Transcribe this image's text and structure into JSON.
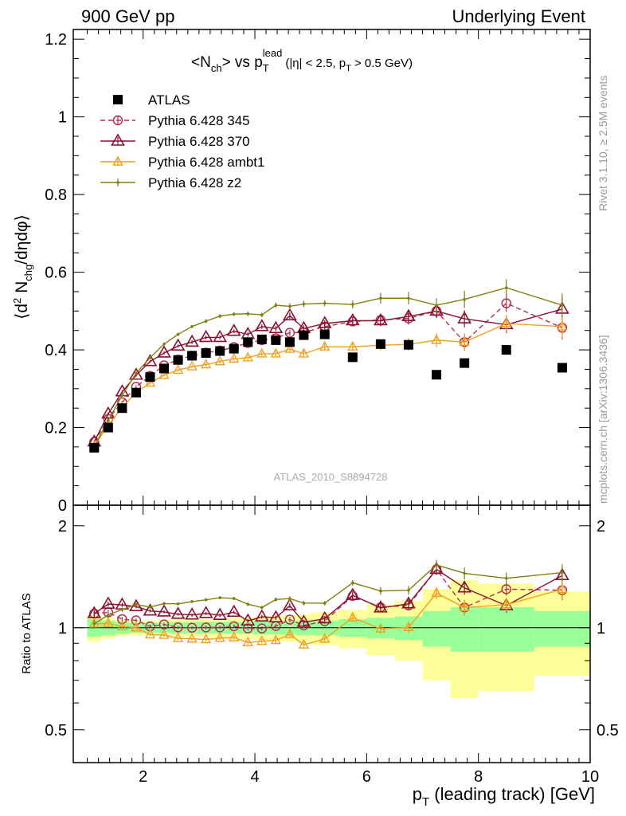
{
  "header": {
    "left": "900 GeV pp",
    "right": "Underlying Event"
  },
  "side_text": {
    "rivet": "Rivet 3.1.10, ≥ 2.5M events",
    "mcplots": "mcplots.cern.ch [arXiv:1306.3436]"
  },
  "watermark": "ATLAS_2010_S8894728",
  "chart_data": {
    "type": "scatter",
    "title": "<Nch> vs pT lead (|η| < 2.5, pT > 0.5 GeV)",
    "title_parts": {
      "main": "<N",
      "sub1": "ch",
      "mid": "> vs p",
      "sub2": "T",
      "sup": "lead",
      "tail": "(|η| < 2.5, p",
      "tail_sub": "T",
      "tail_end": " > 0.5 GeV)"
    },
    "xlabel": "pT (leading track) [GeV]",
    "xlabel_parts": {
      "main": "p",
      "sub": "T",
      "rest": " (leading track) [GeV]"
    },
    "ylabel": "⟨d² Nchg/dηdφ⟩",
    "ylabel_parts": {
      "a": "⟨d",
      "sup": "2",
      "b": " N",
      "sub": "chg",
      "c": "/dηdφ⟩"
    },
    "ratio_ylabel": "Ratio to ATLAS",
    "xlim": [
      0.75,
      10
    ],
    "ylim": [
      0,
      1.225
    ],
    "ratio_ylim": [
      0.4,
      2.3
    ],
    "ratio_log": true,
    "x_ticks": [
      "2",
      "4",
      "6",
      "8",
      "10"
    ],
    "y_ticks": [
      "0",
      "0.2",
      "0.4",
      "0.6",
      "0.8",
      "1",
      "1.2"
    ],
    "ratio_ticks": [
      "0.5",
      "1",
      "2"
    ],
    "legend_position": "top-left",
    "x": [
      1.125,
      1.375,
      1.625,
      1.875,
      2.125,
      2.375,
      2.625,
      2.875,
      3.125,
      3.375,
      3.625,
      3.875,
      4.125,
      4.375,
      4.625,
      4.875,
      5.25,
      5.75,
      6.25,
      6.75,
      7.25,
      7.75,
      8.5,
      9.5
    ],
    "x_edges": [
      1.0,
      1.25,
      1.5,
      1.75,
      2.0,
      2.25,
      2.5,
      2.75,
      3.0,
      3.25,
      3.5,
      3.75,
      4.0,
      4.25,
      4.5,
      4.75,
      5.0,
      5.5,
      6.0,
      6.5,
      7.0,
      7.5,
      8.0,
      9.0,
      10.0
    ],
    "band_inner": [
      0.06,
      0.05,
      0.04,
      0.035,
      0.035,
      0.035,
      0.04,
      0.04,
      0.04,
      0.04,
      0.04,
      0.04,
      0.045,
      0.045,
      0.045,
      0.05,
      0.05,
      0.06,
      0.07,
      0.08,
      0.12,
      0.15,
      0.15,
      0.12,
      0.12
    ],
    "band_outer": [
      0.09,
      0.07,
      0.055,
      0.05,
      0.05,
      0.055,
      0.06,
      0.06,
      0.06,
      0.065,
      0.07,
      0.075,
      0.08,
      0.085,
      0.09,
      0.095,
      0.11,
      0.13,
      0.17,
      0.2,
      0.3,
      0.38,
      0.35,
      0.28,
      0.28
    ],
    "band_colors": {
      "inner": "#99ff99",
      "outer": "#ffff99"
    },
    "series": [
      {
        "name": "ATLAS",
        "style": "data",
        "color": "#000000",
        "values": [
          0.148,
          0.2,
          0.25,
          0.29,
          0.33,
          0.352,
          0.374,
          0.385,
          0.392,
          0.397,
          0.403,
          0.42,
          0.427,
          0.425,
          0.42,
          0.438,
          0.44,
          0.381,
          0.415,
          0.413,
          0.336,
          0.366,
          0.4,
          0.354
        ]
      },
      {
        "name": "Pythia 6.428 345",
        "style": "open-circle-dashed",
        "color": "#b03050",
        "values": [
          0.163,
          0.222,
          0.265,
          0.305,
          0.333,
          0.36,
          0.375,
          0.385,
          0.393,
          0.398,
          0.407,
          0.418,
          0.425,
          0.43,
          0.444,
          0.445,
          0.46,
          0.473,
          0.477,
          0.481,
          0.5,
          0.42,
          0.52,
          0.457
        ],
        "errors": [
          0.004,
          0.004,
          0.004,
          0.004,
          0.004,
          0.004,
          0.004,
          0.004,
          0.005,
          0.005,
          0.005,
          0.006,
          0.006,
          0.007,
          0.008,
          0.008,
          0.008,
          0.01,
          0.014,
          0.016,
          0.018,
          0.022,
          0.022,
          0.03
        ]
      },
      {
        "name": "Pythia 6.428 370",
        "style": "open-triangle",
        "color": "#8b1030",
        "values": [
          0.163,
          0.235,
          0.292,
          0.335,
          0.37,
          0.392,
          0.41,
          0.42,
          0.432,
          0.432,
          0.448,
          0.44,
          0.46,
          0.455,
          0.488,
          0.455,
          0.468,
          0.475,
          0.475,
          0.486,
          0.5,
          0.48,
          0.465,
          0.505
        ],
        "errors": [
          0.004,
          0.004,
          0.004,
          0.004,
          0.004,
          0.004,
          0.004,
          0.005,
          0.005,
          0.005,
          0.005,
          0.006,
          0.006,
          0.007,
          0.008,
          0.008,
          0.008,
          0.01,
          0.014,
          0.016,
          0.018,
          0.022,
          0.022,
          0.03
        ]
      },
      {
        "name": "Pythia 6.428 ambt1",
        "style": "open-small-triangle",
        "color": "#f0a020",
        "values": [
          0.152,
          0.206,
          0.252,
          0.29,
          0.315,
          0.335,
          0.348,
          0.357,
          0.362,
          0.37,
          0.377,
          0.38,
          0.39,
          0.39,
          0.402,
          0.39,
          0.408,
          0.408,
          0.412,
          0.414,
          0.425,
          0.42,
          0.468,
          0.46
        ],
        "errors": [
          0.004,
          0.004,
          0.004,
          0.004,
          0.004,
          0.004,
          0.004,
          0.004,
          0.005,
          0.005,
          0.005,
          0.006,
          0.006,
          0.007,
          0.008,
          0.008,
          0.008,
          0.01,
          0.014,
          0.016,
          0.018,
          0.022,
          0.022,
          0.03
        ]
      },
      {
        "name": "Pythia 6.428 z2",
        "style": "small-dot",
        "color": "#808010",
        "values": [
          0.152,
          0.218,
          0.283,
          0.34,
          0.38,
          0.415,
          0.44,
          0.46,
          0.474,
          0.487,
          0.492,
          0.493,
          0.49,
          0.515,
          0.512,
          0.518,
          0.52,
          0.517,
          0.533,
          0.533,
          0.515,
          0.53,
          0.56,
          0.515
        ],
        "errors": [
          0.004,
          0.004,
          0.004,
          0.004,
          0.004,
          0.004,
          0.004,
          0.004,
          0.005,
          0.005,
          0.005,
          0.006,
          0.006,
          0.007,
          0.008,
          0.008,
          0.008,
          0.01,
          0.014,
          0.016,
          0.018,
          0.022,
          0.022,
          0.03
        ]
      }
    ]
  }
}
